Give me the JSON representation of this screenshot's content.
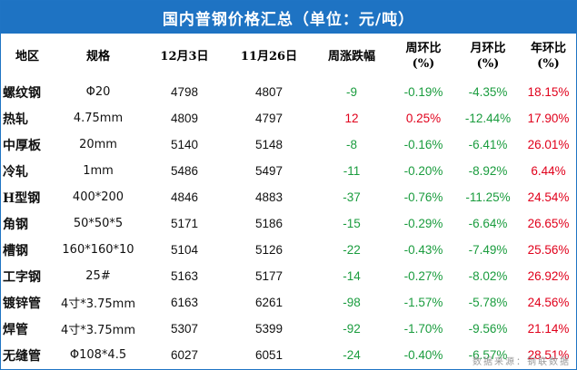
{
  "title": "国内普钢价格汇总（单位：元/吨）",
  "headers": {
    "region": "地区",
    "spec": "规格",
    "date1": "12月3日",
    "date2": "11月26日",
    "weekly_change": "周涨跌幅",
    "wow_line1": "周环比",
    "wow_line2": "(%)",
    "mom_line1": "月环比",
    "mom_line2": "(%)",
    "yoy_line1": "年环比",
    "yoy_line2": "(%)"
  },
  "rows": [
    {
      "region": "螺纹钢",
      "spec": "Φ20",
      "price1": "4798",
      "price2": "4807",
      "change": "-9",
      "wow": "-0.19%",
      "mom": "-4.35%",
      "yoy": "18.15%"
    },
    {
      "region": "热轧",
      "spec": "4.75mm",
      "price1": "4809",
      "price2": "4797",
      "change": "12",
      "wow": "0.25%",
      "mom": "-12.44%",
      "yoy": "17.90%"
    },
    {
      "region": "中厚板",
      "spec": "20mm",
      "price1": "5140",
      "price2": "5148",
      "change": "-8",
      "wow": "-0.16%",
      "mom": "-6.41%",
      "yoy": "26.01%"
    },
    {
      "region": "冷轧",
      "spec": "1mm",
      "price1": "5486",
      "price2": "5497",
      "change": "-11",
      "wow": "-0.20%",
      "mom": "-8.92%",
      "yoy": "6.44%"
    },
    {
      "region": "H型钢",
      "spec": "400*200",
      "price1": "4846",
      "price2": "4883",
      "change": "-37",
      "wow": "-0.76%",
      "mom": "-11.25%",
      "yoy": "24.54%"
    },
    {
      "region": "角钢",
      "spec": "50*50*5",
      "price1": "5171",
      "price2": "5186",
      "change": "-15",
      "wow": "-0.29%",
      "mom": "-6.64%",
      "yoy": "26.65%"
    },
    {
      "region": "槽钢",
      "spec": "160*160*10",
      "price1": "5104",
      "price2": "5126",
      "change": "-22",
      "wow": "-0.43%",
      "mom": "-7.49%",
      "yoy": "25.56%"
    },
    {
      "region": "工字钢",
      "spec": "25#",
      "price1": "5163",
      "price2": "5177",
      "change": "-14",
      "wow": "-0.27%",
      "mom": "-8.02%",
      "yoy": "26.92%"
    },
    {
      "region": "镀锌管",
      "spec": "4寸*3.75mm",
      "price1": "6163",
      "price2": "6261",
      "change": "-98",
      "wow": "-1.57%",
      "mom": "-5.78%",
      "yoy": "24.56%"
    },
    {
      "region": "焊管",
      "spec": "4寸*3.75mm",
      "price1": "5307",
      "price2": "5399",
      "change": "-92",
      "wow": "-1.70%",
      "mom": "-9.56%",
      "yoy": "21.14%"
    },
    {
      "region": "无缝管",
      "spec": "Φ108*4.5",
      "price1": "6027",
      "price2": "6051",
      "change": "-24",
      "wow": "-0.40%",
      "mom": "-6.57%",
      "yoy": "28.51%"
    }
  ],
  "source": "数据来源：钢联数据",
  "colors": {
    "header_bg": "#1e73c3",
    "up": "#e0001b",
    "down": "#1a9c3e"
  }
}
